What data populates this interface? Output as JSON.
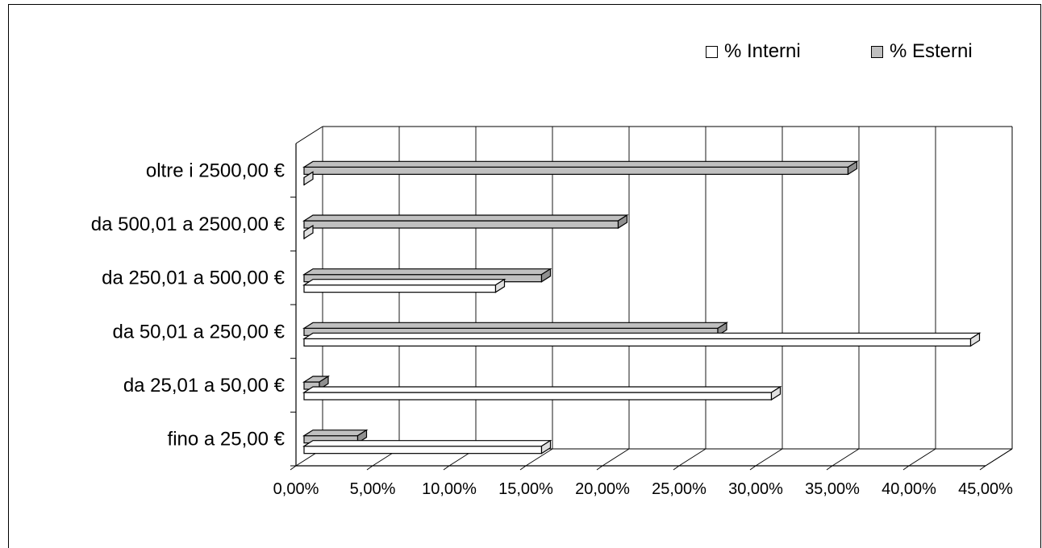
{
  "chart_data": {
    "type": "bar",
    "orientation": "horizontal",
    "categories": [
      "fino a 25,00 €",
      "da 25,01 a 50,00 €",
      "da 50,01 a 250,00 €",
      "da 250,01 a 500,00 €",
      "da 500,01 a 2500,00 €",
      "oltre i 2500,00 €"
    ],
    "series": [
      {
        "name": "% Interni",
        "color": "#ffffff",
        "values": [
          15.5,
          30.5,
          43.5,
          12.5,
          0,
          0
        ]
      },
      {
        "name": "% Esterni",
        "color": "#c0c0c0",
        "values": [
          3.5,
          1.0,
          27.0,
          15.5,
          20.5,
          35.5
        ]
      }
    ],
    "xticks": [
      "0,00%",
      "5,00%",
      "10,00%",
      "15,00%",
      "20,00%",
      "25,00%",
      "30,00%",
      "35,00%",
      "40,00%",
      "45,00%"
    ],
    "xlim": [
      0,
      45
    ],
    "grid": true,
    "legend": "top-right"
  }
}
